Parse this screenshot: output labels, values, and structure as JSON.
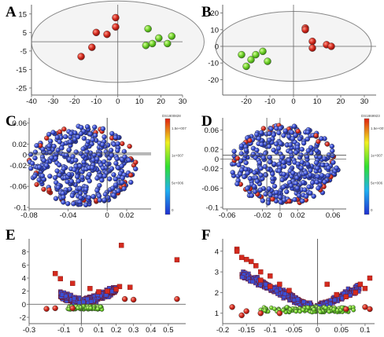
{
  "colors": {
    "red": "#d42a1e",
    "green": "#6fd12a",
    "blue": "#3a4fd6",
    "axis": "#666666",
    "ellipse_fill": "#f4f4f4"
  },
  "chart_data": [
    {
      "panel": "A",
      "type": "scatter",
      "title": "",
      "xlabel": "",
      "ylabel": "",
      "xlim": [
        -40,
        30
      ],
      "ylim": [
        -25,
        20
      ],
      "xticks": [
        -40,
        -30,
        -20,
        -10,
        0,
        10,
        20,
        30
      ],
      "yticks": [
        -25,
        -15,
        -5,
        5,
        15
      ],
      "ellipse": {
        "cx": 0,
        "cy": 0,
        "rx": 40,
        "ry": 22
      },
      "series": [
        {
          "color": "red",
          "points": [
            [
              -1,
              13
            ],
            [
              -1,
              8
            ],
            [
              -10,
              5
            ],
            [
              -5,
              4
            ],
            [
              -12,
              -3
            ],
            [
              -17,
              -8
            ]
          ]
        },
        {
          "color": "green",
          "points": [
            [
              14,
              7
            ],
            [
              25,
              3
            ],
            [
              19,
              2
            ],
            [
              23,
              -1
            ],
            [
              16,
              -1
            ],
            [
              13,
              -2
            ]
          ]
        }
      ]
    },
    {
      "panel": "B",
      "type": "scatter",
      "title": "",
      "xlabel": "",
      "ylabel": "",
      "xlim": [
        -30,
        35
      ],
      "ylim": [
        -25,
        25
      ],
      "xticks": [
        -20,
        -10,
        0,
        10,
        20,
        30
      ],
      "yticks": [
        -20,
        -10,
        0,
        10,
        20
      ],
      "ellipse": {
        "cx": 0,
        "cy": 0,
        "rx": 33,
        "ry": 21
      },
      "series": [
        {
          "color": "red",
          "points": [
            [
              5,
              11
            ],
            [
              5,
              10
            ],
            [
              8,
              3
            ],
            [
              14,
              1
            ],
            [
              16,
              0
            ],
            [
              8,
              -1
            ]
          ]
        },
        {
          "color": "green",
          "points": [
            [
              -13,
              -3
            ],
            [
              -22,
              -5
            ],
            [
              -16,
              -5
            ],
            [
              -18,
              -8
            ],
            [
              -11,
              -9
            ],
            [
              -20,
              -12
            ]
          ]
        }
      ]
    },
    {
      "panel": "C",
      "type": "scatter",
      "title": "",
      "xlabel": "",
      "ylabel": "",
      "xlim": [
        -0.08,
        0.045
      ],
      "ylim": [
        -0.1,
        0.07
      ],
      "xticks": [
        -0.08,
        -0.04,
        0,
        0.02
      ],
      "yticks": [
        0.06,
        0.02,
        0,
        -0.02,
        -0.06,
        -0.1
      ],
      "colorbar": {
        "title": "DS1800828",
        "labels": [
          "1.5e+007",
          "1e+007",
          "5e+006",
          "0"
        ]
      },
      "n_points": 440
    },
    {
      "panel": "D",
      "type": "scatter",
      "title": "",
      "xlabel": "",
      "ylabel": "",
      "xlim": [
        -0.065,
        0.075
      ],
      "ylim": [
        -0.1,
        0.085
      ],
      "xticks": [
        -0.06,
        -0.02,
        0,
        0.02,
        0.06
      ],
      "yticks": [
        0.06,
        0.02,
        0,
        -0.02,
        -0.06,
        -0.1
      ],
      "colorbar": {
        "title": "DS1869923",
        "labels": [
          "1.5e+007",
          "1e+007",
          "5e+006",
          "0"
        ]
      },
      "n_points": 440
    },
    {
      "panel": "E",
      "type": "scatter",
      "title": "",
      "xlabel": "",
      "ylabel": "",
      "xlim": [
        -0.3,
        0.6
      ],
      "ylim": [
        -2,
        10
      ],
      "xticks": [
        -0.3,
        -0.1,
        0,
        0.1,
        0.2,
        0.3,
        0.4,
        0.5
      ],
      "yticks": [
        8,
        6,
        4,
        2,
        0,
        -2
      ],
      "red_squares": [
        [
          0.23,
          9
        ],
        [
          0.55,
          6.8
        ],
        [
          -0.15,
          4.7
        ],
        [
          -0.12,
          3.9
        ],
        [
          0.22,
          2.7
        ],
        [
          0.2,
          2.3
        ],
        [
          0.15,
          2.0
        ],
        [
          0.28,
          2.6
        ],
        [
          0.1,
          1.9
        ],
        [
          -0.05,
          3.2
        ],
        [
          0.05,
          2.4
        ]
      ],
      "red_circles": [
        [
          0.55,
          0.8
        ],
        [
          -0.2,
          -0.7
        ],
        [
          -0.15,
          -0.6
        ],
        [
          -0.05,
          -0.6
        ],
        [
          0.25,
          0.8
        ],
        [
          0.3,
          0.7
        ]
      ]
    },
    {
      "panel": "F",
      "type": "scatter",
      "title": "",
      "xlabel": "",
      "ylabel": "",
      "xlim": [
        -0.2,
        0.12
      ],
      "ylim": [
        0.8,
        4.6
      ],
      "xticks": [
        -0.2,
        -0.15,
        -0.1,
        -0.05,
        0,
        0.05,
        0.1
      ],
      "yticks": [
        4,
        3,
        2,
        1
      ],
      "red_squares": [
        [
          -0.17,
          4.1
        ],
        [
          -0.17,
          4.0
        ],
        [
          -0.16,
          3.7
        ],
        [
          -0.15,
          3.6
        ],
        [
          -0.14,
          3.5
        ],
        [
          -0.13,
          3.3
        ],
        [
          -0.12,
          3.0
        ],
        [
          -0.1,
          2.8
        ],
        [
          -0.1,
          2.3
        ],
        [
          -0.08,
          2.4
        ],
        [
          -0.06,
          2.1
        ],
        [
          0.02,
          2.4
        ],
        [
          0.04,
          1.9
        ],
        [
          0.06,
          1.8
        ],
        [
          0.08,
          2.0
        ],
        [
          0.1,
          2.2
        ],
        [
          0.11,
          2.7
        ],
        [
          0.09,
          2.4
        ],
        [
          -0.12,
          2.6
        ]
      ],
      "red_circles": [
        [
          -0.18,
          1.3
        ],
        [
          -0.15,
          1.1
        ],
        [
          -0.12,
          1.0
        ],
        [
          -0.08,
          1.0
        ],
        [
          0.06,
          1.2
        ],
        [
          0.1,
          1.3
        ],
        [
          0.11,
          1.2
        ],
        [
          -0.16,
          0.9
        ]
      ]
    }
  ]
}
